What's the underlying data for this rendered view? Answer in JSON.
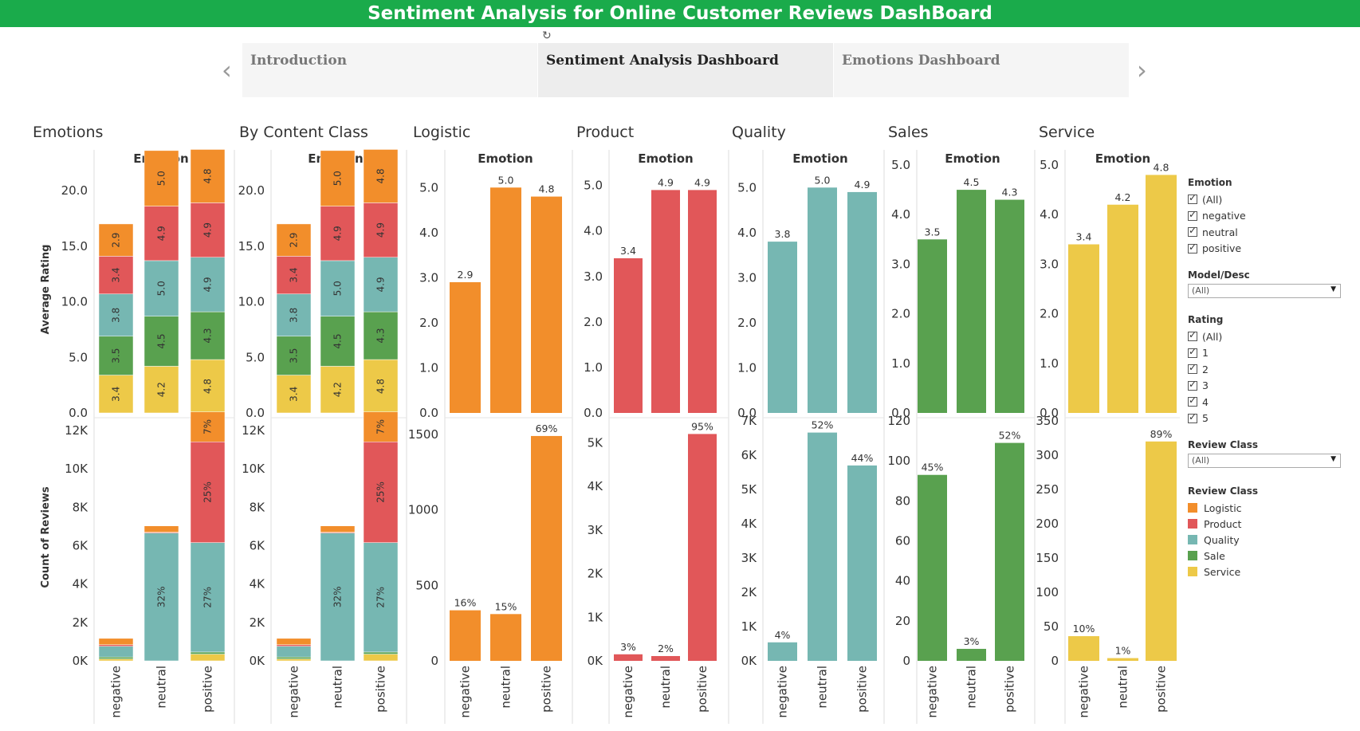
{
  "title": "Sentiment Analysis for Online Customer Reviews DashBoard",
  "nav": {
    "tabs": [
      {
        "label": "Introduction",
        "active": false
      },
      {
        "label": "Sentiment Analysis Dashboard",
        "active": true
      },
      {
        "label": "Emotions Dashboard",
        "active": false
      }
    ],
    "prev": "‹",
    "next": "›"
  },
  "colors": {
    "Logistic": "#f28e2b",
    "Product": "#e15759",
    "Quality": "#76b7b2",
    "Sale": "#59a14f",
    "Service": "#edc948"
  },
  "axes": {
    "y_top": "Average Rating",
    "y_bottom": "Count of Reviews",
    "header": "Emotion"
  },
  "filters": {
    "emotion": {
      "title": "Emotion",
      "options": [
        "(All)",
        "negative",
        "neutral",
        "positive"
      ]
    },
    "model": {
      "title": "Model/Desc",
      "value": "(All)"
    },
    "rating": {
      "title": "Rating",
      "options": [
        "(All)",
        "1",
        "2",
        "3",
        "4",
        "5"
      ]
    },
    "review_class_dd": {
      "title": "Review Class",
      "value": "(All)"
    },
    "legend": {
      "title": "Review Class",
      "items": [
        {
          "label": "Logistic",
          "color": "#f28e2b"
        },
        {
          "label": "Product",
          "color": "#e15759"
        },
        {
          "label": "Quality",
          "color": "#76b7b2"
        },
        {
          "label": "Sale",
          "color": "#59a14f"
        },
        {
          "label": "Service",
          "color": "#edc948"
        }
      ]
    }
  },
  "chart_data": [
    {
      "title": "Emotions",
      "type": "bar",
      "stacked": true,
      "categories": [
        "negative",
        "neutral",
        "positive"
      ],
      "rating": {
        "ticks": [
          "0.0",
          "5.0",
          "10.0",
          "15.0",
          "20.0"
        ],
        "ylim": [
          0,
          22.3
        ],
        "series": [
          {
            "class": "Service",
            "values": [
              3.4,
              4.2,
              4.8
            ]
          },
          {
            "class": "Sale",
            "values": [
              3.5,
              4.5,
              4.3
            ]
          },
          {
            "class": "Quality",
            "values": [
              3.8,
              5.0,
              4.9
            ]
          },
          {
            "class": "Product",
            "values": [
              3.4,
              4.9,
              4.9
            ]
          },
          {
            "class": "Logistic",
            "values": [
              2.9,
              5.0,
              4.8
            ]
          }
        ]
      },
      "count": {
        "ticks": [
          "0K",
          "2K",
          "4K",
          "6K",
          "8K",
          "10K",
          "12K"
        ],
        "ylim": [
          0,
          12500
        ],
        "series": [
          {
            "class": "Service",
            "values": [
              100,
              0,
              350
            ]
          },
          {
            "class": "Sale",
            "values": [
              100,
              0,
              110
            ]
          },
          {
            "class": "Quality",
            "values": [
              560,
              6660,
              5700
            ]
          },
          {
            "class": "Product",
            "values": [
              80,
              40,
              5250
            ]
          },
          {
            "class": "Logistic",
            "values": [
              330,
              330,
              1560
            ]
          }
        ],
        "labels": [
          [
            "",
            "",
            ""
          ],
          [
            "",
            "",
            ""
          ],
          [
            "",
            "32%",
            "27%"
          ],
          [
            "",
            "",
            "25%"
          ],
          [
            "",
            "",
            "7%"
          ]
        ]
      }
    },
    {
      "title": "By Content Class",
      "type": "bar",
      "stacked": true,
      "categories": [
        "negative",
        "neutral",
        "positive"
      ],
      "rating": {
        "ticks": [
          "0.0",
          "5.0",
          "10.0",
          "15.0",
          "20.0"
        ],
        "ylim": [
          0,
          22.3
        ],
        "series": [
          {
            "class": "Service",
            "values": [
              3.4,
              4.2,
              4.8
            ]
          },
          {
            "class": "Sale",
            "values": [
              3.5,
              4.5,
              4.3
            ]
          },
          {
            "class": "Quality",
            "values": [
              3.8,
              5.0,
              4.9
            ]
          },
          {
            "class": "Product",
            "values": [
              3.4,
              4.9,
              4.9
            ]
          },
          {
            "class": "Logistic",
            "values": [
              2.9,
              5.0,
              4.8
            ]
          }
        ]
      },
      "count": {
        "ticks": [
          "0K",
          "2K",
          "4K",
          "6K",
          "8K",
          "10K",
          "12K"
        ],
        "ylim": [
          0,
          12500
        ],
        "series": [
          {
            "class": "Service",
            "values": [
              100,
              0,
              350
            ]
          },
          {
            "class": "Sale",
            "values": [
              100,
              0,
              110
            ]
          },
          {
            "class": "Quality",
            "values": [
              560,
              6660,
              5700
            ]
          },
          {
            "class": "Product",
            "values": [
              80,
              40,
              5250
            ]
          },
          {
            "class": "Logistic",
            "values": [
              330,
              330,
              1560
            ]
          }
        ],
        "labels": [
          [
            "",
            "",
            ""
          ],
          [
            "",
            "",
            ""
          ],
          [
            "",
            "32%",
            "27%"
          ],
          [
            "",
            "",
            "25%"
          ],
          [
            "",
            "",
            "7%"
          ]
        ]
      }
    },
    {
      "title": "Logistic",
      "type": "bar",
      "class": "Logistic",
      "categories": [
        "negative",
        "neutral",
        "positive"
      ],
      "rating": {
        "ticks": [
          "0.0",
          "1.0",
          "2.0",
          "3.0",
          "4.0",
          "5.0"
        ],
        "ylim": [
          0,
          5.5
        ],
        "values": [
          2.9,
          5.0,
          4.8
        ],
        "labels": [
          "2.9",
          "5.0",
          "4.8"
        ]
      },
      "count": {
        "ticks": [
          "0",
          "500",
          "1000",
          "1500"
        ],
        "ylim": [
          0,
          1590
        ],
        "values": [
          335,
          310,
          1490
        ],
        "labels": [
          "16%",
          "15%",
          "69%"
        ]
      }
    },
    {
      "title": "Product",
      "type": "bar",
      "class": "Product",
      "categories": [
        "negative",
        "neutral",
        "positive"
      ],
      "rating": {
        "ticks": [
          "0.0",
          "1.0",
          "2.0",
          "3.0",
          "4.0",
          "5.0"
        ],
        "ylim": [
          0,
          5.45
        ],
        "values": [
          3.4,
          4.9,
          4.9
        ],
        "labels": [
          "3.4",
          "4.9",
          "4.9"
        ]
      },
      "count": {
        "ticks": [
          "0K",
          "1K",
          "2K",
          "3K",
          "4K",
          "5K"
        ],
        "ylim": [
          0,
          5500
        ],
        "values": [
          150,
          110,
          5200
        ],
        "labels": [
          "3%",
          "2%",
          "95%"
        ]
      }
    },
    {
      "title": "Quality",
      "type": "bar",
      "class": "Quality",
      "categories": [
        "negative",
        "neutral",
        "positive"
      ],
      "rating": {
        "ticks": [
          "0.0",
          "1.0",
          "2.0",
          "3.0",
          "4.0",
          "5.0"
        ],
        "ylim": [
          0,
          5.5
        ],
        "values": [
          3.8,
          5.0,
          4.9
        ],
        "labels": [
          "3.8",
          "5.0",
          "4.9"
        ]
      },
      "count": {
        "ticks": [
          "0K",
          "1K",
          "2K",
          "3K",
          "4K",
          "5K",
          "6K",
          "7K"
        ],
        "ylim": [
          0,
          7000
        ],
        "values": [
          540,
          6660,
          5700
        ],
        "labels": [
          "4%",
          "52%",
          "44%"
        ]
      }
    },
    {
      "title": "Sales",
      "type": "bar",
      "class": "Sale",
      "categories": [
        "negative",
        "neutral",
        "positive"
      ],
      "rating": {
        "ticks": [
          "0.0",
          "1.0",
          "2.0",
          "3.0",
          "4.0",
          "5.0"
        ],
        "ylim": [
          0,
          5.0
        ],
        "values": [
          3.5,
          4.5,
          4.3
        ],
        "labels": [
          "3.5",
          "4.5",
          "4.3"
        ]
      },
      "count": {
        "ticks": [
          "0",
          "20",
          "40",
          "60",
          "80",
          "100",
          "120"
        ],
        "ylim": [
          0,
          120
        ],
        "values": [
          93,
          6,
          109
        ],
        "labels": [
          "45%",
          "3%",
          "52%"
        ]
      }
    },
    {
      "title": "Service",
      "type": "bar",
      "class": "Service",
      "categories": [
        "negative",
        "neutral",
        "positive"
      ],
      "rating": {
        "ticks": [
          "0.0",
          "1.0",
          "2.0",
          "3.0",
          "4.0",
          "5.0"
        ],
        "ylim": [
          0,
          5.0
        ],
        "values": [
          3.4,
          4.2,
          4.8
        ],
        "labels": [
          "3.4",
          "4.2",
          "4.8"
        ]
      },
      "count": {
        "ticks": [
          "0",
          "50",
          "100",
          "150",
          "200",
          "250",
          "300",
          "350"
        ],
        "ylim": [
          0,
          350
        ],
        "values": [
          36,
          4,
          320
        ],
        "labels": [
          "10%",
          "1%",
          "89%"
        ]
      }
    }
  ]
}
